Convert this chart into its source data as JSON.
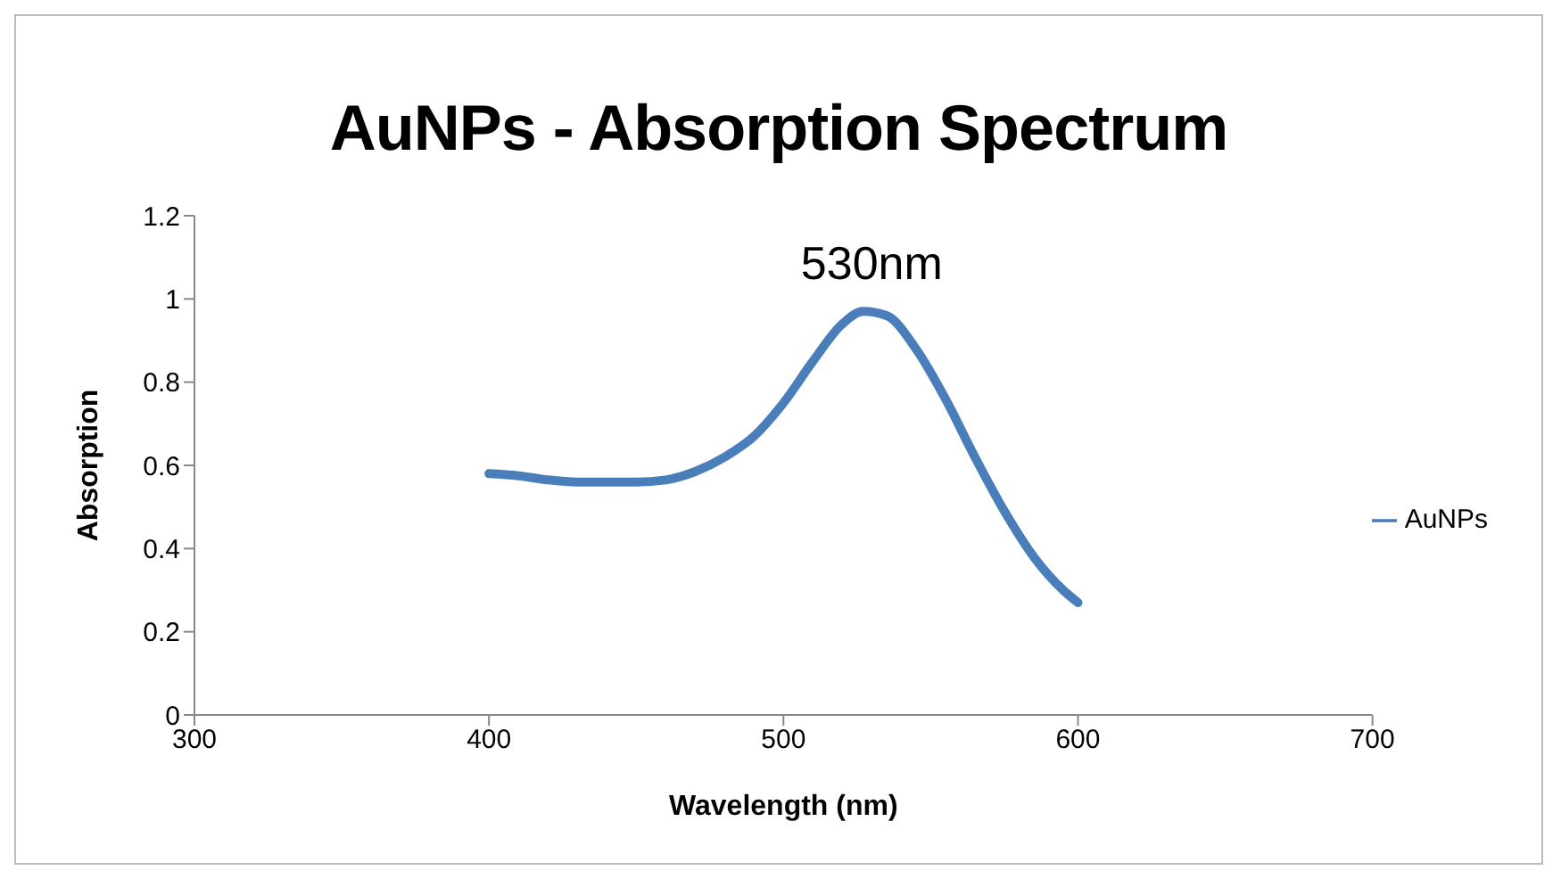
{
  "chart_data": {
    "type": "line",
    "title": "AuNPs - Absorption Spectrum",
    "xlabel": "Wavelength (nm)",
    "ylabel": "Absorption",
    "x": [
      400,
      410,
      420,
      430,
      440,
      450,
      460,
      470,
      480,
      490,
      500,
      510,
      520,
      527,
      535,
      545,
      555,
      565,
      575,
      585,
      595,
      600
    ],
    "series": [
      {
        "name": "AuNPs",
        "color": "#4a7ebb",
        "values": [
          0.58,
          0.575,
          0.565,
          0.56,
          0.56,
          0.56,
          0.565,
          0.585,
          0.62,
          0.67,
          0.75,
          0.85,
          0.94,
          0.97,
          0.96,
          0.88,
          0.76,
          0.62,
          0.49,
          0.38,
          0.3,
          0.27
        ]
      }
    ],
    "annotations": [
      {
        "text": "530nm",
        "x": 530,
        "y": 0.97
      }
    ],
    "xlim": [
      300,
      700
    ],
    "xticks": [
      300,
      400,
      500,
      600,
      700
    ],
    "ylim": [
      0,
      1.2
    ],
    "yticks": [
      0,
      0.2,
      0.4,
      0.6,
      0.8,
      1,
      1.2
    ],
    "grid": false,
    "legend": "right",
    "marker": "none",
    "line_style": "solid"
  }
}
